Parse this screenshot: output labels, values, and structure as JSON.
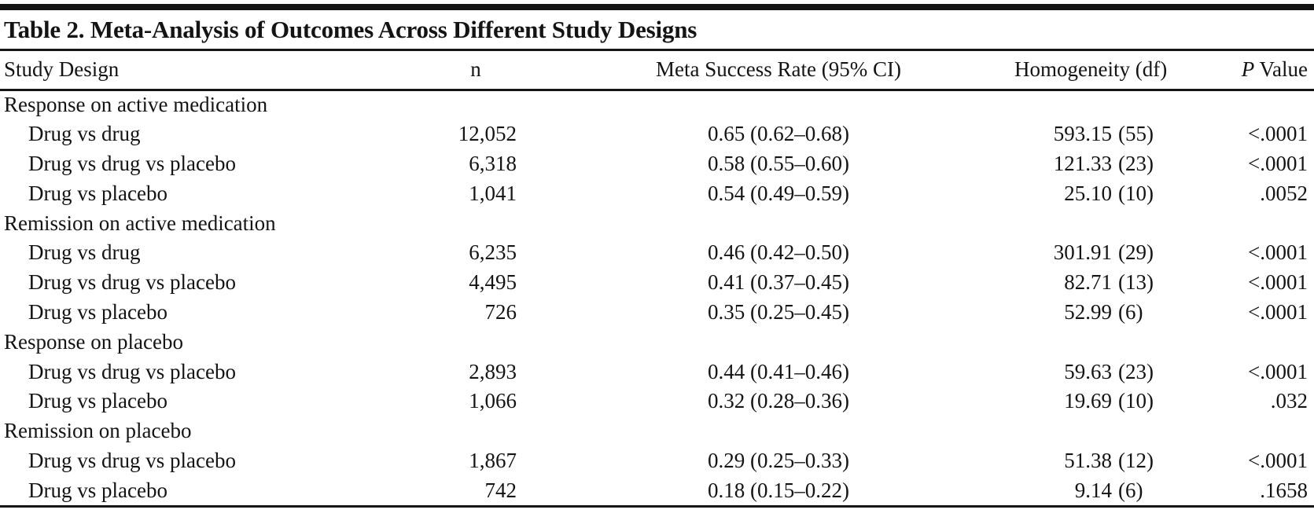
{
  "title": "Table 2. Meta-Analysis of Outcomes Across Different Study Designs",
  "columns": {
    "study_design": "Study Design",
    "n": "n",
    "meta_success_rate": "Meta Success Rate (95% CI)",
    "homogeneity": "Homogeneity (df)",
    "p_value_italic": "P",
    "p_value_rest": " Value"
  },
  "text_color": "#141414",
  "rule_color": "#151515",
  "background_color": "#ffffff",
  "sections": [
    {
      "label": "Response on active medication",
      "rows": [
        {
          "design": "Drug vs drug",
          "n": "12,052",
          "rate": "0.65 (0.62–0.68)",
          "homogeneity_value": "593.15",
          "homogeneity_df": "(55)",
          "p": "<.0001"
        },
        {
          "design": "Drug vs drug vs placebo",
          "n": "6,318",
          "rate": "0.58 (0.55–0.60)",
          "homogeneity_value": "121.33",
          "homogeneity_df": "(23)",
          "p": "<.0001"
        },
        {
          "design": "Drug vs placebo",
          "n": "1,041",
          "rate": "0.54 (0.49–0.59)",
          "homogeneity_value": "25.10",
          "homogeneity_df": "(10)",
          "p": ".0052"
        }
      ]
    },
    {
      "label": "Remission on active medication",
      "rows": [
        {
          "design": "Drug vs drug",
          "n": "6,235",
          "rate": "0.46 (0.42–0.50)",
          "homogeneity_value": "301.91",
          "homogeneity_df": "(29)",
          "p": "<.0001"
        },
        {
          "design": "Drug vs drug vs placebo",
          "n": "4,495",
          "rate": "0.41 (0.37–0.45)",
          "homogeneity_value": "82.71",
          "homogeneity_df": "(13)",
          "p": "<.0001"
        },
        {
          "design": "Drug vs placebo",
          "n": "726",
          "rate": "0.35 (0.25–0.45)",
          "homogeneity_value": "52.99",
          "homogeneity_df": "(6)",
          "p": "<.0001"
        }
      ]
    },
    {
      "label": "Response on placebo",
      "rows": [
        {
          "design": "Drug vs drug vs placebo",
          "n": "2,893",
          "rate": "0.44 (0.41–0.46)",
          "homogeneity_value": "59.63",
          "homogeneity_df": "(23)",
          "p": "<.0001"
        },
        {
          "design": "Drug vs placebo",
          "n": "1,066",
          "rate": "0.32 (0.28–0.36)",
          "homogeneity_value": "19.69",
          "homogeneity_df": "(10)",
          "p": ".032"
        }
      ]
    },
    {
      "label": "Remission on placebo",
      "rows": [
        {
          "design": "Drug vs drug vs placebo",
          "n": "1,867",
          "rate": "0.29 (0.25–0.33)",
          "homogeneity_value": "51.38",
          "homogeneity_df": "(12)",
          "p": "<.0001"
        },
        {
          "design": "Drug vs placebo",
          "n": "742",
          "rate": "0.18 (0.15–0.22)",
          "homogeneity_value": "9.14",
          "homogeneity_df": "(6)",
          "p": ".1658"
        }
      ]
    }
  ]
}
